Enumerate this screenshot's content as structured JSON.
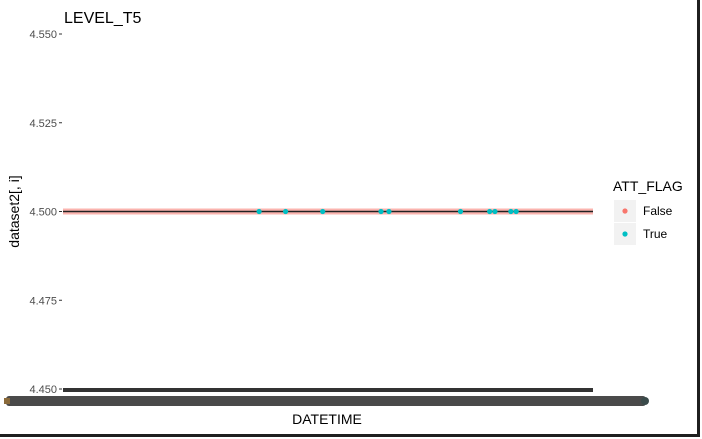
{
  "chart_data": {
    "type": "scatter",
    "title": "LEVEL_T5",
    "xlabel": "DATETIME",
    "ylabel": "dataset2[, i]",
    "ylim": [
      4.45,
      4.55
    ],
    "y_ticks": [
      "4.450",
      "4.475",
      "4.500",
      "4.525",
      "4.550"
    ],
    "y_tick_values": [
      4.45,
      4.475,
      4.5,
      4.525,
      4.55
    ],
    "grid": false,
    "legend": {
      "title": "ATT_FLAG",
      "position": "right",
      "entries": [
        {
          "label": "False",
          "color": "#F8766D"
        },
        {
          "label": "True",
          "color": "#00BFC4"
        }
      ]
    },
    "series": [
      {
        "name": "False",
        "color": "#F8766D",
        "x_fraction": [
          0.0,
          1.0
        ],
        "y": 4.5
      },
      {
        "name": "True",
        "color": "#00BFC4",
        "x_fraction": [
          0.37,
          0.42,
          0.49,
          0.6,
          0.615,
          0.75,
          0.805,
          0.815,
          0.845,
          0.855
        ],
        "y": 4.5
      }
    ],
    "x_tick_labels_overlapping": true
  }
}
